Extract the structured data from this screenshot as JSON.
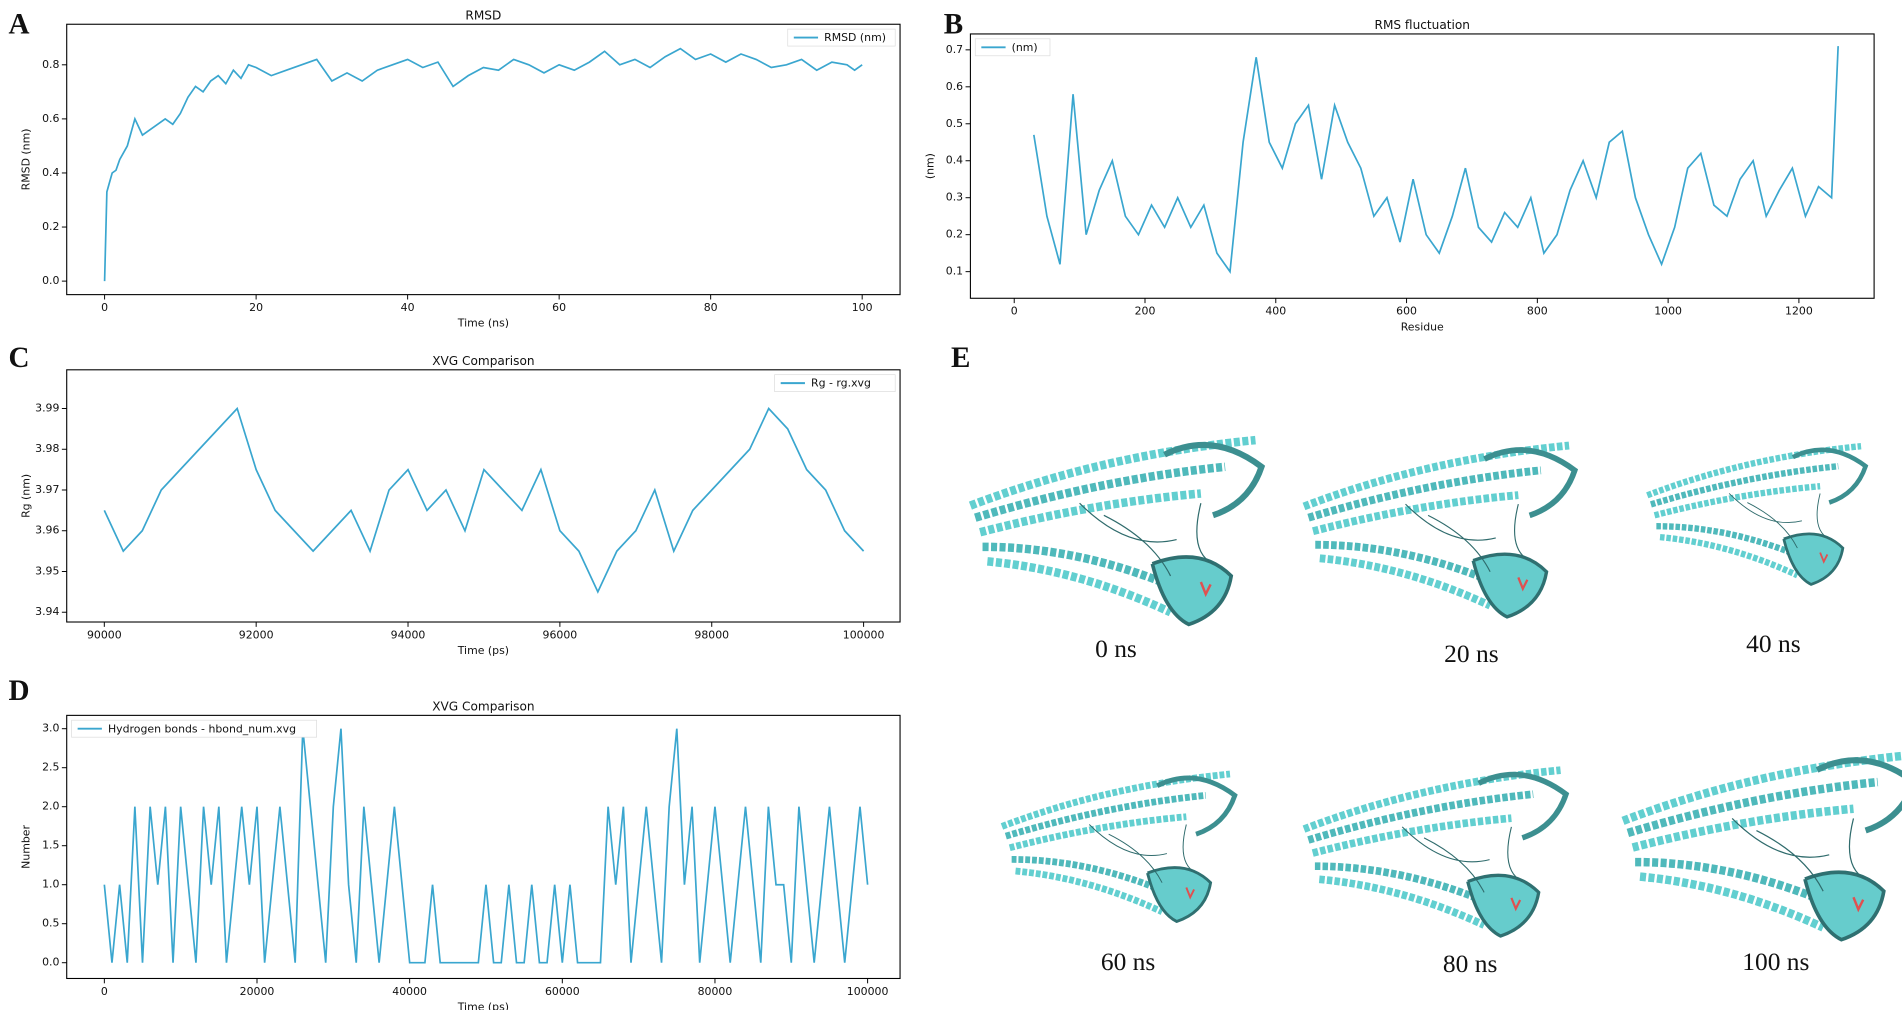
{
  "chart_data": [
    {
      "type": "line",
      "panel": "A",
      "title": "RMSD",
      "xlabel": "Time (ns)",
      "ylabel": "RMSD (nm)",
      "legend": "upper right",
      "x": [
        0,
        0.3,
        0.6,
        1,
        1.5,
        2,
        3,
        4,
        5,
        6,
        7,
        8,
        9,
        10,
        11,
        12,
        13,
        14,
        15,
        16,
        17,
        18,
        19,
        20,
        22,
        24,
        26,
        28,
        30,
        32,
        34,
        36,
        38,
        40,
        42,
        44,
        46,
        48,
        50,
        52,
        54,
        56,
        58,
        60,
        62,
        64,
        66,
        68,
        70,
        72,
        74,
        76,
        78,
        80,
        82,
        84,
        86,
        88,
        90,
        92,
        94,
        96,
        98,
        99,
        100
      ],
      "series": [
        {
          "name": "RMSD (nm)",
          "color": "#3aa6cf",
          "values": [
            0.0,
            0.33,
            0.36,
            0.4,
            0.41,
            0.45,
            0.5,
            0.6,
            0.54,
            0.56,
            0.58,
            0.6,
            0.58,
            0.62,
            0.68,
            0.72,
            0.7,
            0.74,
            0.76,
            0.73,
            0.78,
            0.75,
            0.8,
            0.79,
            0.76,
            0.78,
            0.8,
            0.82,
            0.74,
            0.77,
            0.74,
            0.78,
            0.8,
            0.82,
            0.79,
            0.81,
            0.72,
            0.76,
            0.79,
            0.78,
            0.82,
            0.8,
            0.77,
            0.8,
            0.78,
            0.81,
            0.85,
            0.8,
            0.82,
            0.79,
            0.83,
            0.86,
            0.82,
            0.84,
            0.81,
            0.84,
            0.82,
            0.79,
            0.8,
            0.82,
            0.78,
            0.81,
            0.8,
            0.78,
            0.8
          ]
        }
      ],
      "xlim": [
        -5,
        105
      ],
      "xticks": [
        0,
        20,
        40,
        60,
        80,
        100
      ],
      "ylim": [
        -0.05,
        0.95
      ],
      "yticks": [
        {
          "value": 0,
          "label": "0.0"
        },
        0.2,
        0.4,
        0.6,
        0.8
      ]
    },
    {
      "type": "line",
      "panel": "B",
      "title": "RMS fluctuation",
      "xlabel": "Residue",
      "ylabel": "(nm)",
      "legend": "upper left",
      "x": [
        30,
        50,
        70,
        90,
        110,
        130,
        150,
        170,
        190,
        210,
        230,
        250,
        270,
        290,
        310,
        330,
        350,
        370,
        390,
        410,
        430,
        450,
        470,
        490,
        510,
        530,
        550,
        570,
        590,
        610,
        630,
        650,
        670,
        690,
        710,
        730,
        750,
        770,
        790,
        810,
        830,
        850,
        870,
        890,
        910,
        930,
        950,
        970,
        990,
        1010,
        1030,
        1050,
        1070,
        1090,
        1110,
        1130,
        1150,
        1170,
        1190,
        1210,
        1230,
        1250,
        1260
      ],
      "series": [
        {
          "name": "(nm)",
          "color": "#3aa6cf",
          "values": [
            0.47,
            0.25,
            0.12,
            0.58,
            0.2,
            0.32,
            0.4,
            0.25,
            0.2,
            0.28,
            0.22,
            0.3,
            0.22,
            0.28,
            0.15,
            0.1,
            0.45,
            0.68,
            0.45,
            0.38,
            0.5,
            0.55,
            0.35,
            0.55,
            0.45,
            0.38,
            0.25,
            0.3,
            0.18,
            0.35,
            0.2,
            0.15,
            0.25,
            0.38,
            0.22,
            0.18,
            0.26,
            0.22,
            0.3,
            0.15,
            0.2,
            0.32,
            0.4,
            0.3,
            0.45,
            0.48,
            0.3,
            0.2,
            0.12,
            0.22,
            0.38,
            0.42,
            0.28,
            0.25,
            0.35,
            0.4,
            0.25,
            0.32,
            0.38,
            0.25,
            0.33,
            0.3,
            0.71
          ]
        }
      ],
      "xlim": [
        -67,
        1315
      ],
      "xticks": [
        0,
        200,
        400,
        600,
        800,
        1000,
        1200
      ],
      "ylim": [
        0.028,
        0.743
      ],
      "yticks": [
        0.1,
        0.2,
        0.3,
        0.4,
        0.5,
        0.6,
        0.7
      ]
    },
    {
      "type": "line",
      "panel": "C",
      "title": "XVG Comparison",
      "xlabel": "Time (ps)",
      "ylabel": "Rg (nm)",
      "legend": "upper right",
      "x": [
        90000,
        90250,
        90500,
        90750,
        91000,
        91250,
        91500,
        91750,
        92000,
        92250,
        92500,
        92750,
        93000,
        93250,
        93500,
        93750,
        94000,
        94250,
        94500,
        94750,
        95000,
        95250,
        95500,
        95750,
        96000,
        96250,
        96500,
        96750,
        97000,
        97250,
        97500,
        97750,
        98000,
        98250,
        98500,
        98750,
        99000,
        99250,
        99500,
        99750,
        100000
      ],
      "series": [
        {
          "name": "Rg - rg.xvg",
          "color": "#3aa6cf",
          "values": [
            3.965,
            3.955,
            3.96,
            3.97,
            3.975,
            3.98,
            3.985,
            3.99,
            3.975,
            3.965,
            3.96,
            3.955,
            3.96,
            3.965,
            3.955,
            3.97,
            3.975,
            3.965,
            3.97,
            3.96,
            3.975,
            3.97,
            3.965,
            3.975,
            3.96,
            3.955,
            3.945,
            3.955,
            3.96,
            3.97,
            3.955,
            3.965,
            3.97,
            3.975,
            3.98,
            3.99,
            3.985,
            3.975,
            3.97,
            3.96,
            3.955
          ]
        }
      ],
      "xlim": [
        89505,
        100480
      ],
      "xticks": [
        90000,
        92000,
        94000,
        96000,
        98000,
        100000
      ],
      "ylim": [
        3.9376,
        3.9995
      ],
      "yticks": [
        3.94,
        3.95,
        3.96,
        3.97,
        3.98,
        3.99
      ]
    },
    {
      "type": "line",
      "panel": "D",
      "title": "XVG Comparison",
      "xlabel": "Time (ps)",
      "ylabel": "Number",
      "legend": "upper left",
      "x": [
        0,
        1000,
        2000,
        3000,
        4000,
        5000,
        6000,
        7000,
        8000,
        9000,
        10000,
        11000,
        12000,
        13000,
        14000,
        15000,
        16000,
        17000,
        18000,
        19000,
        20000,
        21000,
        22000,
        23000,
        24000,
        25000,
        26000,
        27000,
        28000,
        29000,
        30000,
        31000,
        32000,
        33000,
        34000,
        35000,
        36000,
        37000,
        38000,
        39000,
        40000,
        41000,
        42000,
        43000,
        44000,
        45000,
        46000,
        47000,
        48000,
        49000,
        50000,
        51000,
        52000,
        53000,
        54000,
        55000,
        56000,
        57000,
        58000,
        59000,
        60000,
        61000,
        62000,
        63000,
        64000,
        65000,
        66000,
        67000,
        68000,
        69000,
        70000,
        71000,
        72000,
        73000,
        74000,
        75000,
        76000,
        77000,
        78000,
        79000,
        80000,
        81000,
        82000,
        83000,
        84000,
        85000,
        86000,
        87000,
        88000,
        89000,
        90000,
        91000,
        92000,
        93000,
        94000,
        95000,
        96000,
        97000,
        98000,
        99000,
        100000
      ],
      "series": [
        {
          "name": "Hydrogen bonds - hbond_num.xvg",
          "color": "#3aa6cf",
          "values": [
            1,
            0,
            1,
            0,
            2,
            0,
            2,
            1,
            2,
            0,
            2,
            1,
            0,
            2,
            1,
            2,
            0,
            1,
            2,
            1,
            2,
            0,
            1,
            2,
            1,
            0,
            3,
            2,
            1,
            0,
            2,
            3,
            1,
            0,
            2,
            1,
            0,
            1,
            2,
            1,
            0,
            0,
            0,
            1,
            0,
            0,
            0,
            0,
            0,
            0,
            1,
            0,
            0,
            1,
            0,
            0,
            1,
            0,
            0,
            1,
            0,
            1,
            0,
            0,
            0,
            0,
            2,
            1,
            2,
            0,
            1,
            2,
            1,
            0,
            2,
            3,
            1,
            2,
            0,
            1,
            2,
            1,
            0,
            1,
            2,
            1,
            0,
            2,
            1,
            1,
            0,
            2,
            1,
            0,
            1,
            2,
            1,
            0,
            1,
            2,
            1
          ]
        }
      ],
      "xlim": [
        -4930,
        104250
      ],
      "xticks": [
        0,
        20000,
        40000,
        60000,
        80000,
        100000
      ],
      "ylim": [
        -0.202,
        3.171
      ],
      "yticks": [
        {
          "value": 0,
          "label": "0.0"
        },
        0.5,
        {
          "value": 1,
          "label": "1.0"
        },
        1.5,
        {
          "value": 2,
          "label": "2.0"
        },
        2.5,
        {
          "value": 3,
          "label": "3.0"
        }
      ]
    }
  ],
  "panel_e": {
    "label": "E",
    "snapshots": [
      "0 ns",
      "20 ns",
      "40 ns",
      "60 ns",
      "80 ns",
      "100 ns"
    ]
  }
}
